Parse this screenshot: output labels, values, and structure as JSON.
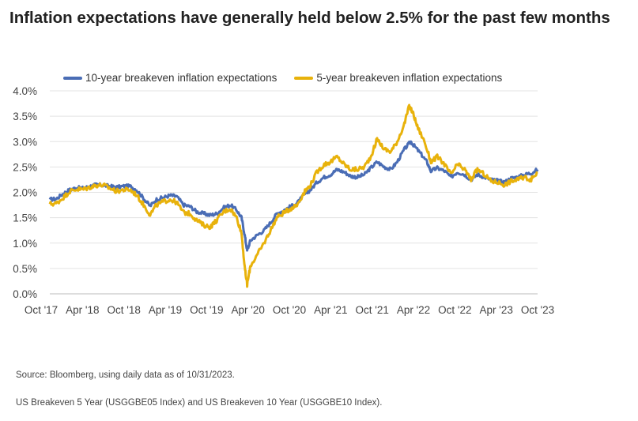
{
  "chart_data": {
    "type": "line",
    "title": "Inflation expectations have generally held below 2.5% for the past few months",
    "xlabel": "",
    "ylabel": "",
    "x_ticks": [
      "Oct '17",
      "Apr '18",
      "Oct '18",
      "Apr '19",
      "Oct '19",
      "Apr '20",
      "Oct '20",
      "Apr '21",
      "Oct '21",
      "Apr '22",
      "Oct '22",
      "Apr '23",
      "Oct '23"
    ],
    "y_ticks": [
      "4.0%",
      "3.5%",
      "3.0%",
      "2.5%",
      "2.0%",
      "1.5%",
      "1.0%",
      "0.5%",
      "0.0%"
    ],
    "ylim": [
      0,
      4.0
    ],
    "xlim": [
      2017.75,
      2023.83
    ],
    "grid": true,
    "legend_position": "top",
    "series": [
      {
        "name": "10-year breakeven inflation expectations",
        "color": "#4a6db5",
        "points": [
          [
            2017.75,
            1.86
          ],
          [
            2017.83,
            1.87
          ],
          [
            2017.92,
            1.98
          ],
          [
            2018.0,
            2.05
          ],
          [
            2018.08,
            2.09
          ],
          [
            2018.17,
            2.08
          ],
          [
            2018.25,
            2.12
          ],
          [
            2018.33,
            2.15
          ],
          [
            2018.42,
            2.14
          ],
          [
            2018.5,
            2.12
          ],
          [
            2018.58,
            2.1
          ],
          [
            2018.67,
            2.12
          ],
          [
            2018.75,
            2.12
          ],
          [
            2018.83,
            2.05
          ],
          [
            2018.92,
            1.88
          ],
          [
            2019.0,
            1.73
          ],
          [
            2019.08,
            1.86
          ],
          [
            2019.17,
            1.9
          ],
          [
            2019.25,
            1.94
          ],
          [
            2019.33,
            1.92
          ],
          [
            2019.42,
            1.75
          ],
          [
            2019.5,
            1.72
          ],
          [
            2019.58,
            1.62
          ],
          [
            2019.67,
            1.58
          ],
          [
            2019.75,
            1.55
          ],
          [
            2019.83,
            1.58
          ],
          [
            2019.92,
            1.7
          ],
          [
            2020.0,
            1.75
          ],
          [
            2020.08,
            1.65
          ],
          [
            2020.14,
            1.5
          ],
          [
            2020.18,
            1.15
          ],
          [
            2020.21,
            0.85
          ],
          [
            2020.25,
            1.05
          ],
          [
            2020.33,
            1.15
          ],
          [
            2020.42,
            1.25
          ],
          [
            2020.5,
            1.4
          ],
          [
            2020.58,
            1.58
          ],
          [
            2020.67,
            1.65
          ],
          [
            2020.75,
            1.72
          ],
          [
            2020.83,
            1.78
          ],
          [
            2020.92,
            1.95
          ],
          [
            2021.0,
            2.05
          ],
          [
            2021.08,
            2.2
          ],
          [
            2021.17,
            2.3
          ],
          [
            2021.25,
            2.35
          ],
          [
            2021.33,
            2.45
          ],
          [
            2021.42,
            2.4
          ],
          [
            2021.5,
            2.32
          ],
          [
            2021.58,
            2.3
          ],
          [
            2021.67,
            2.35
          ],
          [
            2021.75,
            2.48
          ],
          [
            2021.83,
            2.6
          ],
          [
            2021.92,
            2.5
          ],
          [
            2022.0,
            2.45
          ],
          [
            2022.08,
            2.6
          ],
          [
            2022.17,
            2.85
          ],
          [
            2022.25,
            3.0
          ],
          [
            2022.3,
            2.9
          ],
          [
            2022.38,
            2.75
          ],
          [
            2022.45,
            2.6
          ],
          [
            2022.5,
            2.42
          ],
          [
            2022.58,
            2.48
          ],
          [
            2022.67,
            2.42
          ],
          [
            2022.75,
            2.3
          ],
          [
            2022.83,
            2.4
          ],
          [
            2022.92,
            2.35
          ],
          [
            2023.0,
            2.25
          ],
          [
            2023.08,
            2.35
          ],
          [
            2023.17,
            2.3
          ],
          [
            2023.25,
            2.25
          ],
          [
            2023.33,
            2.23
          ],
          [
            2023.42,
            2.2
          ],
          [
            2023.5,
            2.28
          ],
          [
            2023.58,
            2.3
          ],
          [
            2023.67,
            2.35
          ],
          [
            2023.75,
            2.38
          ],
          [
            2023.83,
            2.45
          ]
        ]
      },
      {
        "name": "5-year breakeven inflation expectations",
        "color": "#e8b20b",
        "points": [
          [
            2017.75,
            1.77
          ],
          [
            2017.83,
            1.78
          ],
          [
            2017.92,
            1.9
          ],
          [
            2018.0,
            2.02
          ],
          [
            2018.08,
            2.06
          ],
          [
            2018.17,
            2.06
          ],
          [
            2018.25,
            2.1
          ],
          [
            2018.33,
            2.14
          ],
          [
            2018.42,
            2.14
          ],
          [
            2018.5,
            2.08
          ],
          [
            2018.58,
            2.02
          ],
          [
            2018.67,
            2.05
          ],
          [
            2018.75,
            2.05
          ],
          [
            2018.83,
            1.95
          ],
          [
            2018.92,
            1.75
          ],
          [
            2019.0,
            1.56
          ],
          [
            2019.08,
            1.75
          ],
          [
            2019.17,
            1.82
          ],
          [
            2019.25,
            1.86
          ],
          [
            2019.33,
            1.8
          ],
          [
            2019.42,
            1.6
          ],
          [
            2019.5,
            1.58
          ],
          [
            2019.58,
            1.45
          ],
          [
            2019.67,
            1.35
          ],
          [
            2019.75,
            1.32
          ],
          [
            2019.83,
            1.45
          ],
          [
            2019.92,
            1.62
          ],
          [
            2020.0,
            1.68
          ],
          [
            2020.08,
            1.5
          ],
          [
            2020.14,
            1.2
          ],
          [
            2020.18,
            0.5
          ],
          [
            2020.21,
            0.18
          ],
          [
            2020.25,
            0.55
          ],
          [
            2020.33,
            0.75
          ],
          [
            2020.42,
            1.0
          ],
          [
            2020.5,
            1.25
          ],
          [
            2020.58,
            1.5
          ],
          [
            2020.67,
            1.6
          ],
          [
            2020.75,
            1.68
          ],
          [
            2020.83,
            1.75
          ],
          [
            2020.92,
            2.0
          ],
          [
            2021.0,
            2.15
          ],
          [
            2021.08,
            2.4
          ],
          [
            2021.17,
            2.55
          ],
          [
            2021.25,
            2.6
          ],
          [
            2021.33,
            2.7
          ],
          [
            2021.42,
            2.55
          ],
          [
            2021.5,
            2.45
          ],
          [
            2021.58,
            2.45
          ],
          [
            2021.67,
            2.5
          ],
          [
            2021.75,
            2.7
          ],
          [
            2021.83,
            3.05
          ],
          [
            2021.92,
            2.85
          ],
          [
            2022.0,
            2.8
          ],
          [
            2022.08,
            3.0
          ],
          [
            2022.17,
            3.35
          ],
          [
            2022.23,
            3.7
          ],
          [
            2022.28,
            3.55
          ],
          [
            2022.33,
            3.3
          ],
          [
            2022.42,
            3.0
          ],
          [
            2022.5,
            2.6
          ],
          [
            2022.58,
            2.7
          ],
          [
            2022.67,
            2.55
          ],
          [
            2022.75,
            2.35
          ],
          [
            2022.83,
            2.55
          ],
          [
            2022.92,
            2.45
          ],
          [
            2023.0,
            2.25
          ],
          [
            2023.08,
            2.45
          ],
          [
            2023.17,
            2.35
          ],
          [
            2023.25,
            2.22
          ],
          [
            2023.33,
            2.2
          ],
          [
            2023.42,
            2.15
          ],
          [
            2023.5,
            2.22
          ],
          [
            2023.58,
            2.25
          ],
          [
            2023.67,
            2.3
          ],
          [
            2023.75,
            2.25
          ],
          [
            2023.83,
            2.4
          ]
        ]
      }
    ]
  },
  "legend": {
    "item1": "10-year breakeven inflation expectations",
    "item2": "5-year breakeven inflation expectations"
  },
  "source_text": "Source: Bloomberg, using daily data as of 10/31/2023.",
  "note_text": "US Breakeven 5 Year (USGGBE05 Index) and US Breakeven 10 Year (USGGBE10 Index)."
}
